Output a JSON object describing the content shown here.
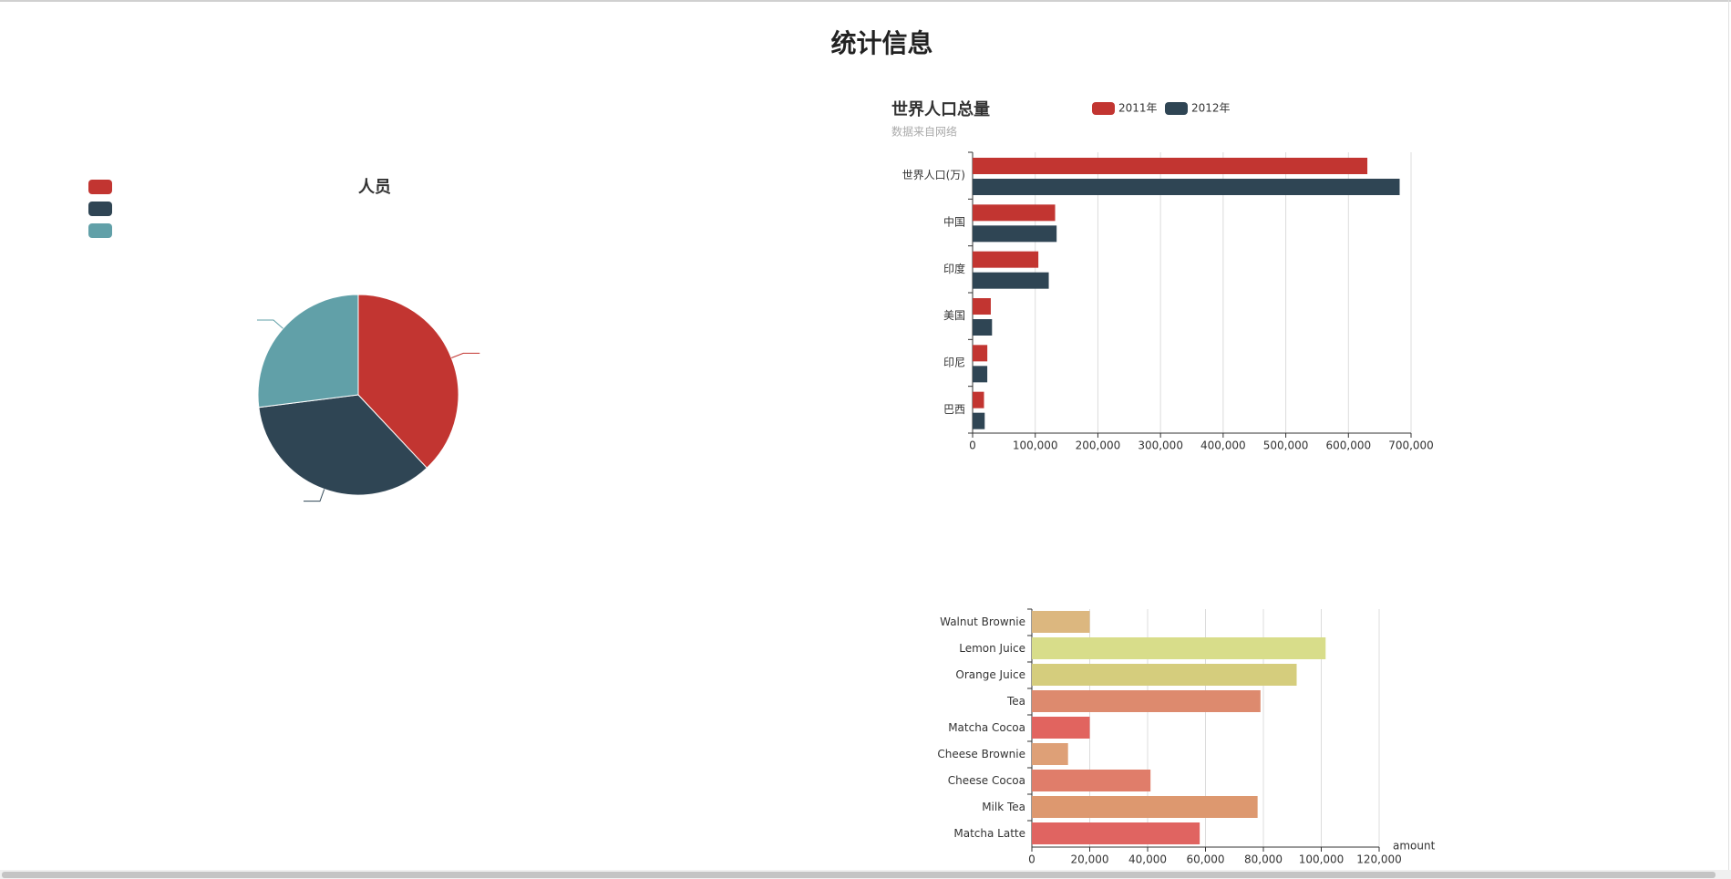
{
  "page": {
    "title": "统计信息"
  },
  "colors": {
    "red": "#c23531",
    "navy": "#2f4554",
    "teal": "#61a0a8"
  },
  "chart_data": [
    {
      "type": "pie",
      "title": "人员",
      "legend": {
        "entries": [
          "",
          "",
          ""
        ],
        "placement": "top-left",
        "colors": [
          "#c23531",
          "#2f4554",
          "#61a0a8"
        ]
      },
      "slices": [
        {
          "name": "",
          "value": 38,
          "color": "#c23531"
        },
        {
          "name": "",
          "value": 35,
          "color": "#2f4554"
        },
        {
          "name": "",
          "value": 27,
          "color": "#61a0a8"
        }
      ]
    },
    {
      "type": "bar",
      "orientation": "horizontal",
      "title": "世界人口总量",
      "subtitle": "数据来自网络",
      "categories": [
        "世界人口(万)",
        "中国",
        "印度",
        "美国",
        "印尼",
        "巴西"
      ],
      "series": [
        {
          "name": "2011年",
          "color": "#c23531",
          "values": [
            630230,
            131744,
            104970,
            29034,
            23489,
            18203
          ]
        },
        {
          "name": "2012年",
          "color": "#2f4554",
          "values": [
            681807,
            134141,
            121594,
            31000,
            23438,
            19325
          ]
        }
      ],
      "xlim": [
        0,
        700000
      ],
      "xticks": [
        "0",
        "100,000",
        "200,000",
        "300,000",
        "400,000",
        "500,000",
        "600,000",
        "700,000"
      ],
      "grid": true,
      "legend_placement": "top"
    },
    {
      "type": "bar",
      "orientation": "horizontal",
      "categories": [
        "Walnut Brownie",
        "Lemon Juice",
        "Orange Juice",
        "Tea",
        "Matcha Cocoa",
        "Cheese Brownie",
        "Cheese Cocoa",
        "Milk Tea",
        "Matcha Latte"
      ],
      "values": [
        20000,
        101500,
        91500,
        79000,
        20000,
        12500,
        41000,
        78000,
        58000
      ],
      "colors": [
        "#dcb77f",
        "#d8dd8a",
        "#d5cd7d",
        "#dd8a6e",
        "#e1645f",
        "#dea077",
        "#e07d6a",
        "#dd986f",
        "#e06461"
      ],
      "xlabel": "amount",
      "xlim": [
        0,
        120000
      ],
      "xticks": [
        "0",
        "20,000",
        "40,000",
        "60,000",
        "80,000",
        "100,000",
        "120,000"
      ],
      "grid": true
    }
  ]
}
